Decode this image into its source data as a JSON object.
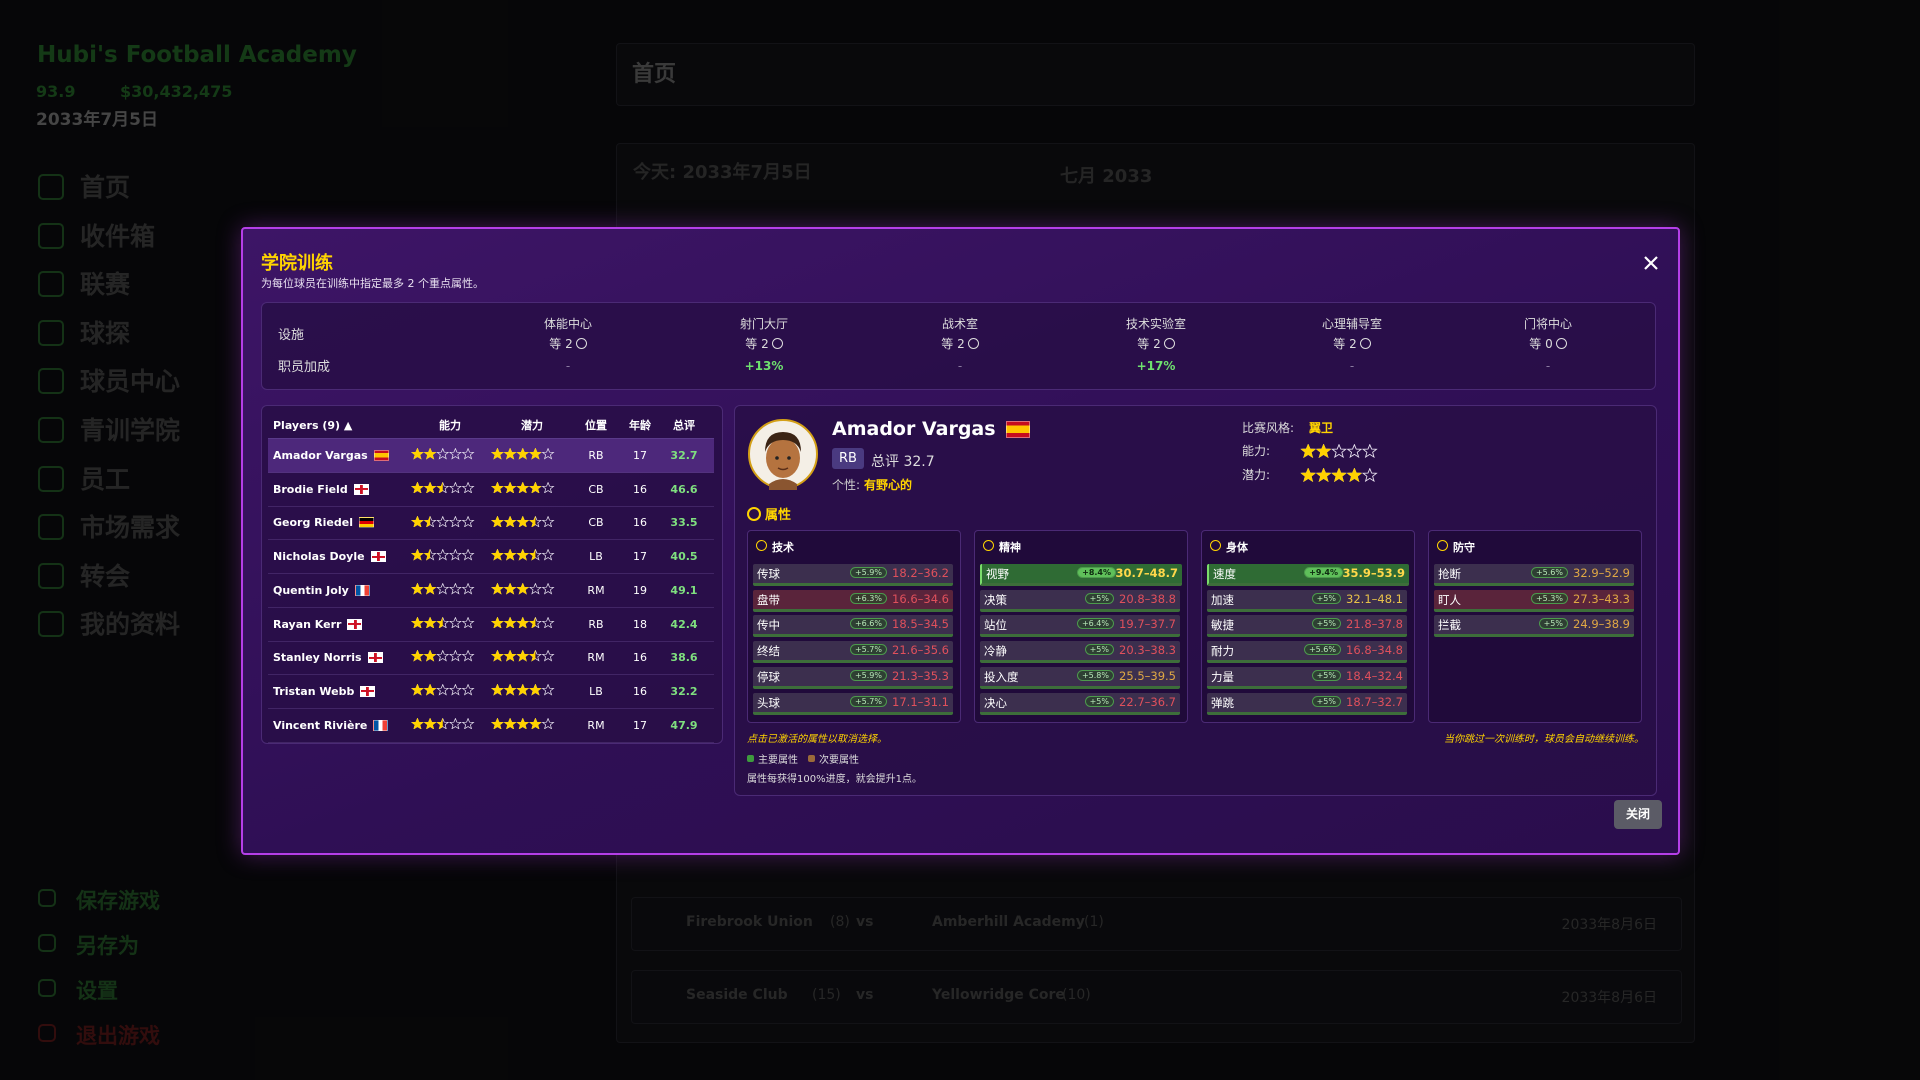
{
  "sidebar": {
    "title": "Hubi's Football Academy",
    "reputation": "93.9",
    "money": "$30,432,475",
    "date": "2033年7月5日",
    "nav": [
      "首页",
      "收件箱",
      "联赛",
      "球探",
      "球员中心",
      "青训学院",
      "员工",
      "市场需求",
      "转会",
      "我的资料"
    ],
    "bottom": [
      "保存游戏",
      "另存为",
      "设置",
      "退出游戏"
    ]
  },
  "main": {
    "header": "首页",
    "today": "今天: 2033年7月5日",
    "month": "七月 2033",
    "matches": [
      {
        "home": "Firebrook Union",
        "home_rank": "(8)",
        "vs": "vs",
        "away": "Amberhill Academy",
        "away_rank": "(1)",
        "date": "2033年8月6日"
      },
      {
        "home": "Seaside Club",
        "home_rank": "(15)",
        "vs": "vs",
        "away": "Yellowridge Core",
        "away_rank": "(10)",
        "date": "2033年8月6日"
      }
    ]
  },
  "modal": {
    "title": "学院训练",
    "subtitle": "为每位球员在训练中指定最多 2 个重点属性。",
    "facilities": {
      "row_labels": [
        "设施",
        "职员加成"
      ],
      "columns": [
        {
          "name": "体能中心",
          "level": "等 2",
          "bonus": "-"
        },
        {
          "name": "射门大厅",
          "level": "等 2",
          "bonus": "+13%"
        },
        {
          "name": "战术室",
          "level": "等 2",
          "bonus": "-"
        },
        {
          "name": "技术实验室",
          "level": "等 2",
          "bonus": "+17%"
        },
        {
          "name": "心理辅导室",
          "level": "等 2",
          "bonus": "-"
        },
        {
          "name": "门将中心",
          "level": "等 0",
          "bonus": "-"
        }
      ]
    },
    "players": {
      "header": {
        "players": "Players (9) ▲",
        "ability": "能力",
        "potential": "潜力",
        "position": "位置",
        "age": "年龄",
        "rating": "总评"
      },
      "rows": [
        {
          "name": "Amador Vargas",
          "flag": "es",
          "ability": 2,
          "potential": 4,
          "position": "RB",
          "age": 17,
          "rating": 32.7,
          "selected": true
        },
        {
          "name": "Brodie Field",
          "flag": "en",
          "ability": 2.5,
          "potential": 4,
          "position": "CB",
          "age": 16,
          "rating": 46.6,
          "selected": false
        },
        {
          "name": "Georg Riedel",
          "flag": "de",
          "ability": 1.5,
          "potential": 3.5,
          "position": "CB",
          "age": 16,
          "rating": 33.5,
          "selected": false
        },
        {
          "name": "Nicholas Doyle",
          "flag": "en",
          "ability": 1.5,
          "potential": 3.5,
          "position": "LB",
          "age": 17,
          "rating": 40.5,
          "selected": false
        },
        {
          "name": "Quentin Joly",
          "flag": "fr",
          "ability": 2,
          "potential": 3,
          "position": "RM",
          "age": 19,
          "rating": 49.1,
          "selected": false
        },
        {
          "name": "Rayan Kerr",
          "flag": "en",
          "ability": 2.5,
          "potential": 3.5,
          "position": "RB",
          "age": 18,
          "rating": 42.4,
          "selected": false
        },
        {
          "name": "Stanley Norris",
          "flag": "en",
          "ability": 2,
          "potential": 3.5,
          "position": "RM",
          "age": 16,
          "rating": 38.6,
          "selected": false
        },
        {
          "name": "Tristan Webb",
          "flag": "en",
          "ability": 2,
          "potential": 4,
          "position": "LB",
          "age": 16,
          "rating": 32.2,
          "selected": false
        },
        {
          "name": "Vincent Rivière",
          "flag": "fr",
          "ability": 2.5,
          "potential": 4,
          "position": "RM",
          "age": 17,
          "rating": 47.9,
          "selected": false
        }
      ]
    },
    "detail": {
      "name": "Amador Vargas",
      "flag": "es",
      "position": "RB",
      "rating": "总评 32.7",
      "personality_label": "个性:",
      "personality": "有野心的",
      "style_label": "比赛风格:",
      "style": "翼卫",
      "ability_label": "能力:",
      "ability": 2,
      "potential_label": "潜力:",
      "potential": 4,
      "section": "属性",
      "groups": [
        {
          "name": "技术",
          "attributes": [
            {
              "name": "传球",
              "bonus": "+5.9%",
              "range": "18.2–36.2",
              "state": "none",
              "color": "#e0505c"
            },
            {
              "name": "盘带",
              "bonus": "+6.3%",
              "range": "16.6–34.6",
              "state": "secondary",
              "color": "#e0505c"
            },
            {
              "name": "传中",
              "bonus": "+6.6%",
              "range": "18.5–34.5",
              "state": "none",
              "color": "#e0505c"
            },
            {
              "name": "终结",
              "bonus": "+5.7%",
              "range": "21.6–35.6",
              "state": "none",
              "color": "#e0505c"
            },
            {
              "name": "停球",
              "bonus": "+5.9%",
              "range": "21.3–35.3",
              "state": "none",
              "color": "#e0505c"
            },
            {
              "name": "头球",
              "bonus": "+5.7%",
              "range": "17.1–31.1",
              "state": "none",
              "color": "#e0505c"
            }
          ]
        },
        {
          "name": "精神",
          "attributes": [
            {
              "name": "视野",
              "bonus": "+8.4%",
              "range": "30.7–48.7",
              "state": "primary",
              "color": "#ffd84a"
            },
            {
              "name": "决策",
              "bonus": "+5%",
              "range": "20.8–38.8",
              "state": "none",
              "color": "#e0505c"
            },
            {
              "name": "站位",
              "bonus": "+6.4%",
              "range": "19.7–37.7",
              "state": "none",
              "color": "#e0505c"
            },
            {
              "name": "冷静",
              "bonus": "+5%",
              "range": "20.3–38.3",
              "state": "none",
              "color": "#e0505c"
            },
            {
              "name": "投入度",
              "bonus": "+5.8%",
              "range": "25.5–39.5",
              "state": "none",
              "color": "#e0a844"
            },
            {
              "name": "决心",
              "bonus": "+5%",
              "range": "22.7–36.7",
              "state": "none",
              "color": "#e0505c"
            }
          ]
        },
        {
          "name": "身体",
          "attributes": [
            {
              "name": "速度",
              "bonus": "+9.4%",
              "range": "35.9–53.9",
              "state": "primary",
              "color": "#ffd84a"
            },
            {
              "name": "加速",
              "bonus": "+5%",
              "range": "32.1–48.1",
              "state": "none",
              "color": "#e8c24a"
            },
            {
              "name": "敏捷",
              "bonus": "+5%",
              "range": "21.8–37.8",
              "state": "none",
              "color": "#e0505c"
            },
            {
              "name": "耐力",
              "bonus": "+5.6%",
              "range": "16.8–34.8",
              "state": "none",
              "color": "#e0505c"
            },
            {
              "name": "力量",
              "bonus": "+5%",
              "range": "18.4–32.4",
              "state": "none",
              "color": "#e0505c"
            },
            {
              "name": "弹跳",
              "bonus": "+5%",
              "range": "18.7–32.7",
              "state": "none",
              "color": "#e0505c"
            }
          ]
        },
        {
          "name": "防守",
          "attributes": [
            {
              "name": "抢断",
              "bonus": "+5.6%",
              "range": "32.9–52.9",
              "state": "none",
              "color": "#e0a844"
            },
            {
              "name": "盯人",
              "bonus": "+5.3%",
              "range": "27.3–43.3",
              "state": "secondary",
              "color": "#e0a844"
            },
            {
              "name": "拦截",
              "bonus": "+5%",
              "range": "24.9–38.9",
              "state": "none",
              "color": "#e0a844"
            }
          ]
        }
      ],
      "hint": "点击已激活的属性以取消选择。",
      "legend": [
        "主要属性",
        "次要属性"
      ],
      "note": "属性每获得100%进度，就会提升1点。",
      "auto_note": "当你跳过一次训练时，球员会自动继续训练。"
    },
    "close_button": "关闭"
  }
}
